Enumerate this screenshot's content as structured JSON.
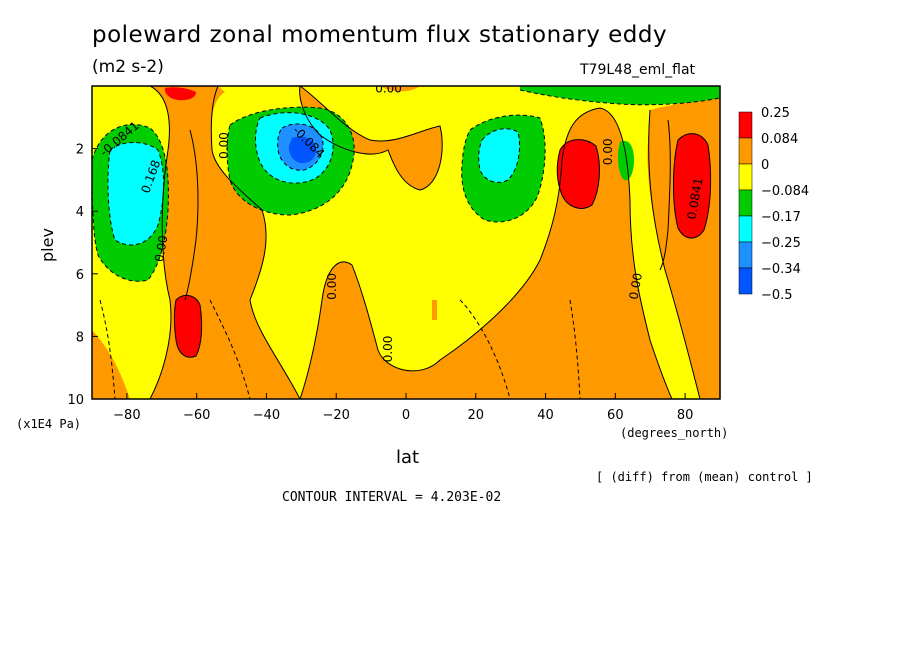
{
  "chart_data": {
    "type": "heatmap",
    "title": "poleward zonal momentum flux stationary eddy",
    "units": "(m2 s-2)",
    "run_label": "T79L48_eml_flat",
    "xlabel": "lat",
    "ylabel": "plev",
    "x_units": "(degrees_north)",
    "y_units": "(x1E4 Pa)",
    "note": "[ (diff) from (mean) control ]",
    "contour_interval": "CONTOUR INTERVAL = 4.203E-02",
    "xlim": [
      -90,
      90
    ],
    "ylim": [
      10,
      0
    ],
    "xticks": [
      -80,
      -60,
      -40,
      -20,
      0,
      20,
      40,
      60,
      80
    ],
    "xtick_labels": [
      "−80",
      "−60",
      "−40",
      "−20",
      "0",
      "20",
      "40",
      "60",
      "80"
    ],
    "yticks": [
      2,
      4,
      6,
      8,
      10
    ],
    "ytick_labels": [
      "2",
      "4",
      "6",
      "8",
      "10"
    ],
    "colorbar": {
      "labels": [
        "0.25",
        "0.084",
        "0",
        "−0.084",
        "−0.17",
        "−0.25",
        "−0.34",
        "−0.5"
      ],
      "colors": [
        "#ff0000",
        "#ff9900",
        "#ffff00",
        "#00cc00",
        "#00ffff",
        "#1e90ff",
        "#0055ff"
      ]
    },
    "contour_labels": [
      {
        "text": "0.00",
        "lat": -5,
        "plev": 0.1,
        "rot": 0
      },
      {
        "text": "-0.0841",
        "lat": -82,
        "plev": 1.7,
        "rot": -40
      },
      {
        "text": "0.168",
        "lat": -73,
        "plev": 2.9,
        "rot": -70
      },
      {
        "text": "0.00",
        "lat": -70,
        "plev": 5.2,
        "rot": -80
      },
      {
        "text": "0.00",
        "lat": -52,
        "plev": 1.9,
        "rot": -90
      },
      {
        "text": "-0.084",
        "lat": -28,
        "plev": 1.8,
        "rot": 45
      },
      {
        "text": "0.00",
        "lat": -21,
        "plev": 6.4,
        "rot": -90
      },
      {
        "text": "0.00",
        "lat": -5,
        "plev": 8.4,
        "rot": -90
      },
      {
        "text": "0.00",
        "lat": 58,
        "plev": 2.1,
        "rot": -90
      },
      {
        "text": "0.00",
        "lat": 66,
        "plev": 6.4,
        "rot": -80
      },
      {
        "text": "0.0841",
        "lat": 83,
        "plev": 3.6,
        "rot": -80
      }
    ],
    "regions": {
      "positive_strong": [
        {
          "lat": [
            -66,
            -58
          ],
          "plev": [
            6.7,
            8.6
          ],
          "value": 0.25
        },
        {
          "lat": [
            -68,
            -60
          ],
          "plev": [
            0.1,
            0.4
          ],
          "value": 0.25
        },
        {
          "lat": [
            48,
            56
          ],
          "plev": [
            1.7,
            3.8
          ],
          "value": 0.25
        },
        {
          "lat": [
            76,
            85
          ],
          "plev": [
            1.4,
            4.6
          ],
          "value": 0.25
        }
      ],
      "negative": [
        {
          "lat": [
            -89,
            -66
          ],
          "plev": [
            1.0,
            5.8
          ],
          "value": -0.17
        },
        {
          "lat": [
            -50,
            -18
          ],
          "plev": [
            0.7,
            3.9
          ],
          "value": -0.17
        },
        {
          "lat": [
            15,
            40
          ],
          "plev": [
            0.9,
            4.2
          ],
          "value": -0.17
        },
        {
          "lat": [
            35,
            88
          ],
          "plev": [
            0.0,
            0.6
          ],
          "value": -0.17
        },
        {
          "lat": [
            61,
            66
          ],
          "plev": [
            1.8,
            3.0
          ],
          "value": -0.17
        }
      ],
      "negative_strong": [
        {
          "lat": [
            -85,
            -72
          ],
          "plev": [
            2.0,
            4.6
          ],
          "value": -0.25
        },
        {
          "lat": [
            -41,
            -22
          ],
          "plev": [
            1.2,
            3.0
          ],
          "value": -0.25
        },
        {
          "lat": [
            -33,
            -24
          ],
          "plev": [
            1.6,
            2.6
          ],
          "value": -0.34
        },
        {
          "lat": [
            -31,
            -26
          ],
          "plev": [
            1.9,
            2.4
          ],
          "value": -0.5
        },
        {
          "lat": [
            21,
            34
          ],
          "plev": [
            1.2,
            3.1
          ],
          "value": -0.25
        }
      ]
    }
  }
}
